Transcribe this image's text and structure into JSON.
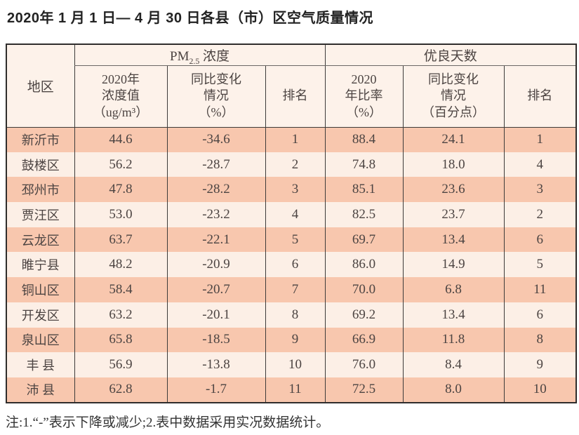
{
  "page": {
    "title": "2020年 1 月 1 日— 4 月 30 日各县（市）区空气质量情况",
    "footnote": "注:1.“-”表示下降或减少;2.表中数据采用实况数据统计。"
  },
  "colors": {
    "row_dark": "#f8c7ae",
    "row_light": "#fcefe6",
    "header_bg": "#fdf2ea",
    "grid_border": "#3d3b3a"
  },
  "table": {
    "headers": {
      "region": "地区",
      "pm25_group": {
        "prefix": "PM",
        "sub": "2.5",
        "suffix": " 浓度"
      },
      "good_group": "优良天数",
      "pm25_value": "2020年\n浓度值\n（ug/m³）",
      "pm25_change": "同比变化\n情况\n（%）",
      "pm25_rank": "排名",
      "good_ratio": "2020\n年比率\n（%）",
      "good_change": "同比变化\n情况\n（百分点）",
      "good_rank": "排名"
    },
    "rows": [
      {
        "region": "新沂市",
        "pm25_value": "44.6",
        "pm25_change": "-34.6",
        "pm25_rank": "1",
        "good_ratio": "88.4",
        "good_change": "24.1",
        "good_rank": "1"
      },
      {
        "region": "鼓楼区",
        "pm25_value": "56.2",
        "pm25_change": "-28.7",
        "pm25_rank": "2",
        "good_ratio": "74.8",
        "good_change": "18.0",
        "good_rank": "4"
      },
      {
        "region": "邳州市",
        "pm25_value": "47.8",
        "pm25_change": "-28.2",
        "pm25_rank": "3",
        "good_ratio": "85.1",
        "good_change": "23.6",
        "good_rank": "3"
      },
      {
        "region": "贾汪区",
        "pm25_value": "53.0",
        "pm25_change": "-23.2",
        "pm25_rank": "4",
        "good_ratio": "82.5",
        "good_change": "23.7",
        "good_rank": "2"
      },
      {
        "region": "云龙区",
        "pm25_value": "63.7",
        "pm25_change": "-22.1",
        "pm25_rank": "5",
        "good_ratio": "69.7",
        "good_change": "13.4",
        "good_rank": "6"
      },
      {
        "region": "睢宁县",
        "pm25_value": "48.2",
        "pm25_change": "-20.9",
        "pm25_rank": "6",
        "good_ratio": "86.0",
        "good_change": "14.9",
        "good_rank": "5"
      },
      {
        "region": "铜山区",
        "pm25_value": "58.4",
        "pm25_change": "-20.7",
        "pm25_rank": "7",
        "good_ratio": "70.0",
        "good_change": "6.8",
        "good_rank": "11"
      },
      {
        "region": "开发区",
        "pm25_value": "63.2",
        "pm25_change": "-20.1",
        "pm25_rank": "8",
        "good_ratio": "69.2",
        "good_change": "13.4",
        "good_rank": "6"
      },
      {
        "region": "泉山区",
        "pm25_value": "65.8",
        "pm25_change": "-18.5",
        "pm25_rank": "9",
        "good_ratio": "66.9",
        "good_change": "11.8",
        "good_rank": "8"
      },
      {
        "region": "丰 县",
        "pm25_value": "56.9",
        "pm25_change": "-13.8",
        "pm25_rank": "10",
        "good_ratio": "76.0",
        "good_change": "8.4",
        "good_rank": "9"
      },
      {
        "region": "沛 县",
        "pm25_value": "62.8",
        "pm25_change": "-1.7",
        "pm25_rank": "11",
        "good_ratio": "72.5",
        "good_change": "8.0",
        "good_rank": "10"
      }
    ]
  }
}
